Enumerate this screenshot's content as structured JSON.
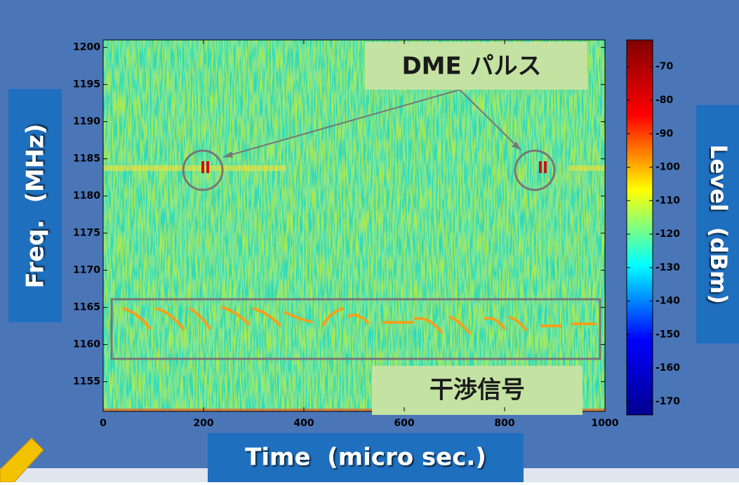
{
  "chart_data": {
    "type": "heatmap",
    "xlabel": "Time  (micro sec.)",
    "ylabel": "Freq.  (MHz)",
    "xlim": [
      0,
      1000
    ],
    "xticks": [
      0,
      200,
      400,
      600,
      800,
      1000
    ],
    "ylim": [
      1151,
      1201
    ],
    "yticks": [
      1155,
      1160,
      1165,
      1170,
      1175,
      1180,
      1185,
      1190,
      1195,
      1200
    ],
    "colorbar": {
      "label": "Level  (dBm)",
      "lim": [
        -174,
        -62
      ],
      "ticks": [
        -170,
        -160,
        -150,
        -140,
        -130,
        -120,
        -110,
        -100,
        -90,
        -80,
        -70
      ],
      "colormap": "jet"
    },
    "annotations": [
      "DME パルス",
      "干渉信号"
    ]
  }
}
